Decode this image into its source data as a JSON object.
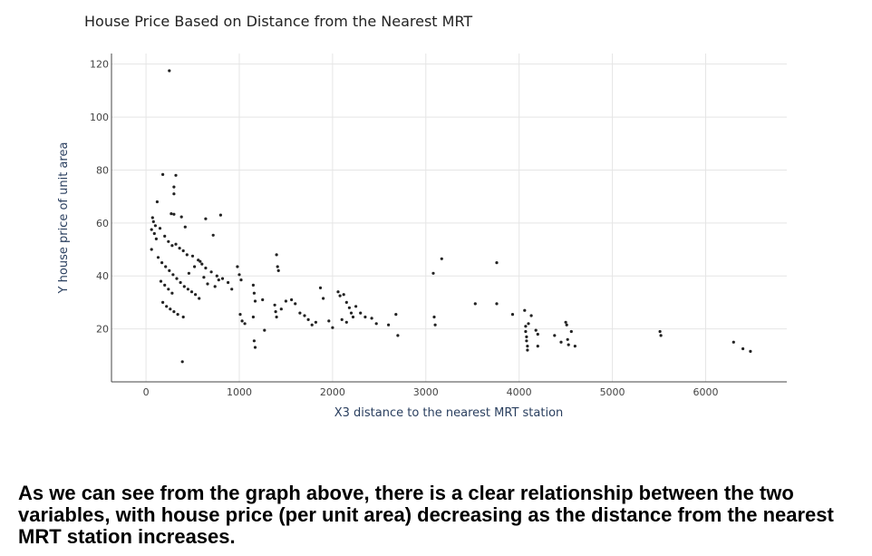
{
  "caption": "As we can see from the graph above, there is a clear relationship between the two variables, with house price (per unit area) decreasing as the distance from the nearest MRT station increases.",
  "colors": {
    "marker": "#222222",
    "grid": "#e5e5e5",
    "axis": "#444444"
  },
  "chart_data": {
    "type": "scatter",
    "title": "House Price Based on Distance from the Nearest MRT",
    "xlabel": "X3 distance to the nearest MRT station",
    "ylabel": "Y house price of unit area",
    "xlim": [
      -370,
      6870
    ],
    "ylim": [
      0,
      124
    ],
    "xticks": [
      0,
      1000,
      2000,
      3000,
      4000,
      5000,
      6000
    ],
    "yticks": [
      20,
      40,
      60,
      80,
      100,
      120
    ],
    "grid": true,
    "points": [
      [
        250,
        117.5
      ],
      [
        390,
        7.6
      ],
      [
        180,
        78.3
      ],
      [
        320,
        78.0
      ],
      [
        300,
        73.6
      ],
      [
        300,
        71.0
      ],
      [
        120,
        68.0
      ],
      [
        270,
        63.5
      ],
      [
        300,
        63.3
      ],
      [
        800,
        63.0
      ],
      [
        640,
        61.6
      ],
      [
        380,
        62.3
      ],
      [
        420,
        58.5
      ],
      [
        720,
        55.4
      ],
      [
        70,
        62.0
      ],
      [
        80,
        60.5
      ],
      [
        100,
        59.0
      ],
      [
        60,
        57.5
      ],
      [
        90,
        56.0
      ],
      [
        150,
        58.0
      ],
      [
        110,
        54.0
      ],
      [
        200,
        55.0
      ],
      [
        240,
        53.0
      ],
      [
        280,
        51.5
      ],
      [
        320,
        52.0
      ],
      [
        360,
        50.5
      ],
      [
        400,
        49.5
      ],
      [
        440,
        48.0
      ],
      [
        500,
        47.5
      ],
      [
        560,
        46.0
      ],
      [
        600,
        44.5
      ],
      [
        640,
        43.0
      ],
      [
        700,
        41.5
      ],
      [
        760,
        40.0
      ],
      [
        820,
        39.0
      ],
      [
        880,
        37.5
      ],
      [
        60,
        50.0
      ],
      [
        130,
        47.0
      ],
      [
        170,
        45.0
      ],
      [
        210,
        43.5
      ],
      [
        250,
        42.0
      ],
      [
        290,
        40.5
      ],
      [
        330,
        39.0
      ],
      [
        370,
        37.5
      ],
      [
        410,
        36.0
      ],
      [
        450,
        35.0
      ],
      [
        490,
        34.0
      ],
      [
        530,
        33.0
      ],
      [
        570,
        31.5
      ],
      [
        160,
        38.0
      ],
      [
        200,
        36.5
      ],
      [
        240,
        35.0
      ],
      [
        280,
        33.5
      ],
      [
        180,
        30.0
      ],
      [
        220,
        28.5
      ],
      [
        260,
        27.5
      ],
      [
        300,
        26.5
      ],
      [
        340,
        25.5
      ],
      [
        400,
        24.5
      ],
      [
        460,
        41.0
      ],
      [
        520,
        43.5
      ],
      [
        580,
        45.5
      ],
      [
        620,
        39.5
      ],
      [
        660,
        37.0
      ],
      [
        740,
        36.0
      ],
      [
        780,
        38.5
      ],
      [
        920,
        35.0
      ],
      [
        980,
        43.5
      ],
      [
        1000,
        40.5
      ],
      [
        1020,
        38.5
      ],
      [
        1010,
        25.5
      ],
      [
        1030,
        23.0
      ],
      [
        1060,
        22.0
      ],
      [
        1150,
        36.5
      ],
      [
        1160,
        33.5
      ],
      [
        1170,
        30.5
      ],
      [
        1150,
        24.5
      ],
      [
        1160,
        15.5
      ],
      [
        1170,
        13.0
      ],
      [
        1250,
        31.0
      ],
      [
        1270,
        19.5
      ],
      [
        1400,
        48.0
      ],
      [
        1410,
        43.5
      ],
      [
        1420,
        42.0
      ],
      [
        1380,
        29.0
      ],
      [
        1390,
        26.5
      ],
      [
        1400,
        24.5
      ],
      [
        1450,
        27.5
      ],
      [
        1500,
        30.5
      ],
      [
        1560,
        31.0
      ],
      [
        1600,
        29.5
      ],
      [
        1650,
        26.0
      ],
      [
        1700,
        25.0
      ],
      [
        1740,
        23.5
      ],
      [
        1780,
        21.5
      ],
      [
        1820,
        22.5
      ],
      [
        1870,
        35.5
      ],
      [
        1900,
        31.5
      ],
      [
        1960,
        23.0
      ],
      [
        2000,
        20.5
      ],
      [
        2060,
        34.0
      ],
      [
        2080,
        32.5
      ],
      [
        2120,
        33.0
      ],
      [
        2150,
        30.0
      ],
      [
        2180,
        28.0
      ],
      [
        2200,
        26.0
      ],
      [
        2220,
        24.5
      ],
      [
        2100,
        23.5
      ],
      [
        2150,
        22.5
      ],
      [
        2250,
        28.5
      ],
      [
        2300,
        26.0
      ],
      [
        2350,
        24.5
      ],
      [
        2420,
        24.0
      ],
      [
        2470,
        22.0
      ],
      [
        2600,
        21.5
      ],
      [
        2680,
        25.5
      ],
      [
        2700,
        17.5
      ],
      [
        3080,
        41.0
      ],
      [
        3090,
        24.5
      ],
      [
        3100,
        21.5
      ],
      [
        3170,
        46.5
      ],
      [
        3530,
        29.5
      ],
      [
        3760,
        45.0
      ],
      [
        3760,
        29.5
      ],
      [
        3930,
        25.5
      ],
      [
        4060,
        27.0
      ],
      [
        4070,
        21.0
      ],
      [
        4070,
        19.0
      ],
      [
        4080,
        17.0
      ],
      [
        4080,
        15.5
      ],
      [
        4090,
        13.5
      ],
      [
        4090,
        12.0
      ],
      [
        4100,
        22.0
      ],
      [
        4130,
        25.0
      ],
      [
        4180,
        19.5
      ],
      [
        4200,
        18.0
      ],
      [
        4200,
        13.5
      ],
      [
        4380,
        17.5
      ],
      [
        4450,
        15.0
      ],
      [
        4500,
        22.5
      ],
      [
        4510,
        21.5
      ],
      [
        4520,
        16.0
      ],
      [
        4530,
        14.0
      ],
      [
        4560,
        19.0
      ],
      [
        4600,
        13.5
      ],
      [
        5510,
        19.0
      ],
      [
        5520,
        17.5
      ],
      [
        6300,
        15.0
      ],
      [
        6400,
        12.5
      ],
      [
        6480,
        11.5
      ]
    ]
  }
}
